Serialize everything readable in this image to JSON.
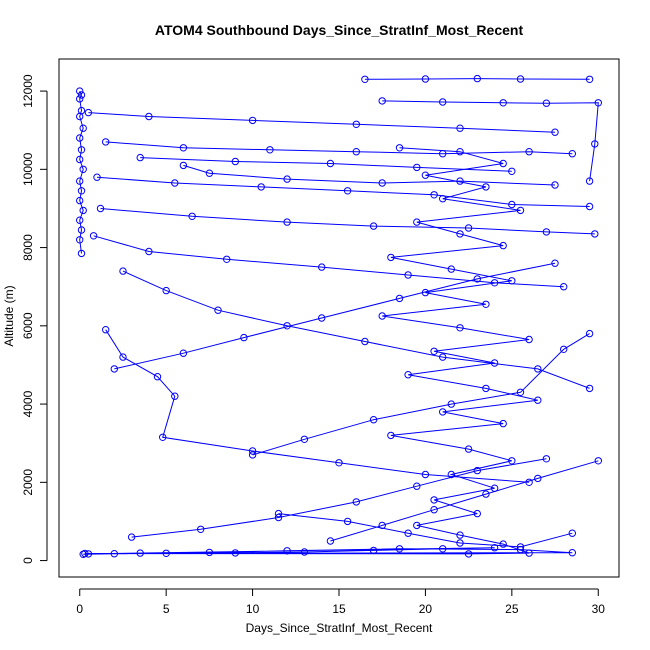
{
  "chart_data": {
    "type": "scatter",
    "title": "ATOM4 Southbound Days_Since_StratInf_Most_Recent",
    "xlabel": "Days_Since_StratInf_Most_Recent",
    "ylabel": "Altitude (m)",
    "xlim": [
      -1.2,
      31.2
    ],
    "ylim": [
      -420,
      12820
    ],
    "xticks": [
      0,
      5,
      10,
      15,
      20,
      25,
      30
    ],
    "yticks": [
      0,
      2000,
      4000,
      6000,
      8000,
      10000,
      12000
    ],
    "grid": false,
    "legend": "none",
    "marker": "open-circle",
    "connect_points": true,
    "color": "#0000ff",
    "series": [
      {
        "values": [
          {
            "x": 0.2,
            "y": 160
          },
          {
            "x": 2.0,
            "y": 175
          },
          {
            "x": 5.0,
            "y": 185
          },
          {
            "x": 9.0,
            "y": 195
          },
          {
            "x": 13.0,
            "y": 220
          },
          {
            "x": 17.0,
            "y": 260
          },
          {
            "x": 21.0,
            "y": 300
          },
          {
            "x": 24.0,
            "y": 330
          },
          {
            "x": 0.5,
            "y": 170
          },
          {
            "x": 3.5,
            "y": 190
          },
          {
            "x": 7.5,
            "y": 210
          },
          {
            "x": 12.0,
            "y": 250
          },
          {
            "x": 18.5,
            "y": 300
          },
          {
            "x": 25.5,
            "y": 280
          },
          {
            "x": 28.5,
            "y": 200
          },
          {
            "x": 0.3,
            "y": 180
          },
          {
            "x": 22.5,
            "y": 170
          },
          {
            "x": 26.0,
            "y": 190
          },
          {
            "x": 24.5,
            "y": 420
          },
          {
            "x": 22.0,
            "y": 650
          },
          {
            "x": 19.5,
            "y": 900
          },
          {
            "x": 23.0,
            "y": 1200
          },
          {
            "x": 20.5,
            "y": 1550
          },
          {
            "x": 24.0,
            "y": 1850
          },
          {
            "x": 21.5,
            "y": 2200
          },
          {
            "x": 25.0,
            "y": 2550
          },
          {
            "x": 22.5,
            "y": 2850
          },
          {
            "x": 18.0,
            "y": 3200
          },
          {
            "x": 24.5,
            "y": 3500
          },
          {
            "x": 21.0,
            "y": 3800
          },
          {
            "x": 26.5,
            "y": 4100
          },
          {
            "x": 23.5,
            "y": 4400
          },
          {
            "x": 19.0,
            "y": 4750
          },
          {
            "x": 24.0,
            "y": 5050
          },
          {
            "x": 20.5,
            "y": 5350
          },
          {
            "x": 26.0,
            "y": 5650
          },
          {
            "x": 22.0,
            "y": 5950
          },
          {
            "x": 17.5,
            "y": 6250
          },
          {
            "x": 23.5,
            "y": 6550
          },
          {
            "x": 20.0,
            "y": 6850
          },
          {
            "x": 25.0,
            "y": 7150
          },
          {
            "x": 21.5,
            "y": 7450
          },
          {
            "x": 18.0,
            "y": 7750
          },
          {
            "x": 24.5,
            "y": 8050
          },
          {
            "x": 22.0,
            "y": 8350
          },
          {
            "x": 19.5,
            "y": 8650
          },
          {
            "x": 25.5,
            "y": 8950
          },
          {
            "x": 21.0,
            "y": 9250
          },
          {
            "x": 23.5,
            "y": 9550
          },
          {
            "x": 20.0,
            "y": 9850
          },
          {
            "x": 24.5,
            "y": 10150
          },
          {
            "x": 22.0,
            "y": 10450
          },
          {
            "x": 18.5,
            "y": 10550
          }
        ]
      },
      {
        "values": [
          {
            "x": 0.0,
            "y": 12000
          },
          {
            "x": 0.1,
            "y": 11900
          },
          {
            "x": 0.0,
            "y": 11800
          },
          {
            "x": 0.1,
            "y": 11500
          },
          {
            "x": 0.0,
            "y": 11350
          },
          {
            "x": 0.2,
            "y": 11050
          },
          {
            "x": 0.0,
            "y": 10800
          },
          {
            "x": 0.1,
            "y": 10500
          },
          {
            "x": 0.0,
            "y": 10250
          },
          {
            "x": 0.2,
            "y": 10000
          },
          {
            "x": 0.0,
            "y": 9700
          },
          {
            "x": 0.1,
            "y": 9450
          },
          {
            "x": 0.0,
            "y": 9200
          },
          {
            "x": 0.2,
            "y": 8950
          },
          {
            "x": 0.0,
            "y": 8700
          },
          {
            "x": 0.1,
            "y": 8450
          },
          {
            "x": 0.0,
            "y": 8200
          },
          {
            "x": 0.1,
            "y": 7850
          }
        ]
      },
      {
        "values": [
          {
            "x": 0.5,
            "y": 11450
          },
          {
            "x": 4.0,
            "y": 11350
          },
          {
            "x": 10.0,
            "y": 11250
          },
          {
            "x": 16.0,
            "y": 11150
          },
          {
            "x": 22.0,
            "y": 11050
          },
          {
            "x": 27.5,
            "y": 10950
          }
        ]
      },
      {
        "values": [
          {
            "x": 16.5,
            "y": 12300
          },
          {
            "x": 20.0,
            "y": 12310
          },
          {
            "x": 23.0,
            "y": 12320
          },
          {
            "x": 25.5,
            "y": 12310
          },
          {
            "x": 29.5,
            "y": 12300
          }
        ]
      },
      {
        "values": [
          {
            "x": 17.5,
            "y": 11750
          },
          {
            "x": 21.0,
            "y": 11720
          },
          {
            "x": 24.5,
            "y": 11700
          },
          {
            "x": 27.0,
            "y": 11690
          },
          {
            "x": 30.0,
            "y": 11700
          },
          {
            "x": 29.8,
            "y": 10650
          },
          {
            "x": 29.5,
            "y": 9700
          }
        ]
      },
      {
        "values": [
          {
            "x": 1.5,
            "y": 10700
          },
          {
            "x": 6.0,
            "y": 10550
          },
          {
            "x": 11.0,
            "y": 10500
          },
          {
            "x": 16.0,
            "y": 10450
          },
          {
            "x": 21.0,
            "y": 10400
          },
          {
            "x": 26.0,
            "y": 10450
          },
          {
            "x": 28.5,
            "y": 10400
          }
        ]
      },
      {
        "values": [
          {
            "x": 1.0,
            "y": 9800
          },
          {
            "x": 5.5,
            "y": 9650
          },
          {
            "x": 10.5,
            "y": 9550
          },
          {
            "x": 15.5,
            "y": 9450
          },
          {
            "x": 20.5,
            "y": 9350
          },
          {
            "x": 25.0,
            "y": 9100
          },
          {
            "x": 29.5,
            "y": 9050
          }
        ]
      },
      {
        "values": [
          {
            "x": 1.2,
            "y": 9000
          },
          {
            "x": 6.5,
            "y": 8800
          },
          {
            "x": 12.0,
            "y": 8650
          },
          {
            "x": 17.0,
            "y": 8550
          },
          {
            "x": 22.5,
            "y": 8500
          },
          {
            "x": 27.0,
            "y": 8400
          },
          {
            "x": 29.8,
            "y": 8350
          }
        ]
      },
      {
        "values": [
          {
            "x": 0.8,
            "y": 8300
          },
          {
            "x": 4.0,
            "y": 7900
          },
          {
            "x": 8.5,
            "y": 7700
          },
          {
            "x": 14.0,
            "y": 7500
          },
          {
            "x": 19.0,
            "y": 7300
          },
          {
            "x": 24.0,
            "y": 7100
          },
          {
            "x": 28.0,
            "y": 7000
          }
        ]
      },
      {
        "values": [
          {
            "x": 1.5,
            "y": 5900
          },
          {
            "x": 2.5,
            "y": 5200
          },
          {
            "x": 4.5,
            "y": 4700
          },
          {
            "x": 5.5,
            "y": 4200
          },
          {
            "x": 4.8,
            "y": 3150
          },
          {
            "x": 10.0,
            "y": 2800
          },
          {
            "x": 15.0,
            "y": 2500
          },
          {
            "x": 20.0,
            "y": 2200
          },
          {
            "x": 26.0,
            "y": 2000
          }
        ]
      },
      {
        "values": [
          {
            "x": 2.5,
            "y": 7400
          },
          {
            "x": 5.0,
            "y": 6900
          },
          {
            "x": 8.0,
            "y": 6400
          },
          {
            "x": 12.0,
            "y": 6000
          },
          {
            "x": 16.5,
            "y": 5600
          },
          {
            "x": 21.0,
            "y": 5200
          },
          {
            "x": 26.5,
            "y": 4900
          },
          {
            "x": 29.5,
            "y": 4400
          }
        ]
      },
      {
        "values": [
          {
            "x": 10.0,
            "y": 2700
          },
          {
            "x": 13.0,
            "y": 3100
          },
          {
            "x": 17.0,
            "y": 3600
          },
          {
            "x": 21.5,
            "y": 4000
          },
          {
            "x": 25.5,
            "y": 4300
          },
          {
            "x": 28.0,
            "y": 5400
          },
          {
            "x": 29.5,
            "y": 5800
          }
        ]
      },
      {
        "values": [
          {
            "x": 14.5,
            "y": 500
          },
          {
            "x": 17.5,
            "y": 900
          },
          {
            "x": 20.5,
            "y": 1300
          },
          {
            "x": 23.5,
            "y": 1700
          },
          {
            "x": 26.5,
            "y": 2100
          },
          {
            "x": 30.0,
            "y": 2550
          }
        ]
      },
      {
        "values": [
          {
            "x": 3.0,
            "y": 600
          },
          {
            "x": 7.0,
            "y": 800
          },
          {
            "x": 11.5,
            "y": 1100
          },
          {
            "x": 16.0,
            "y": 1500
          },
          {
            "x": 19.5,
            "y": 1900
          },
          {
            "x": 23.0,
            "y": 2300
          },
          {
            "x": 27.0,
            "y": 2600
          }
        ]
      },
      {
        "values": [
          {
            "x": 6.0,
            "y": 10100
          },
          {
            "x": 7.5,
            "y": 9900
          },
          {
            "x": 12.0,
            "y": 9750
          },
          {
            "x": 17.5,
            "y": 9650
          },
          {
            "x": 22.0,
            "y": 9700
          },
          {
            "x": 27.5,
            "y": 9600
          }
        ]
      },
      {
        "values": [
          {
            "x": 3.5,
            "y": 10300
          },
          {
            "x": 9.0,
            "y": 10200
          },
          {
            "x": 14.5,
            "y": 10150
          },
          {
            "x": 19.5,
            "y": 10050
          },
          {
            "x": 25.0,
            "y": 9950
          }
        ]
      },
      {
        "values": [
          {
            "x": 2.0,
            "y": 4900
          },
          {
            "x": 6.0,
            "y": 5300
          },
          {
            "x": 9.5,
            "y": 5700
          },
          {
            "x": 14.0,
            "y": 6200
          },
          {
            "x": 18.5,
            "y": 6700
          },
          {
            "x": 23.0,
            "y": 7200
          },
          {
            "x": 27.5,
            "y": 7600
          }
        ]
      },
      {
        "values": [
          {
            "x": 11.5,
            "y": 1200
          },
          {
            "x": 15.5,
            "y": 1000
          },
          {
            "x": 19.0,
            "y": 700
          },
          {
            "x": 22.0,
            "y": 450
          },
          {
            "x": 25.5,
            "y": 350
          },
          {
            "x": 28.5,
            "y": 700
          }
        ]
      }
    ]
  }
}
